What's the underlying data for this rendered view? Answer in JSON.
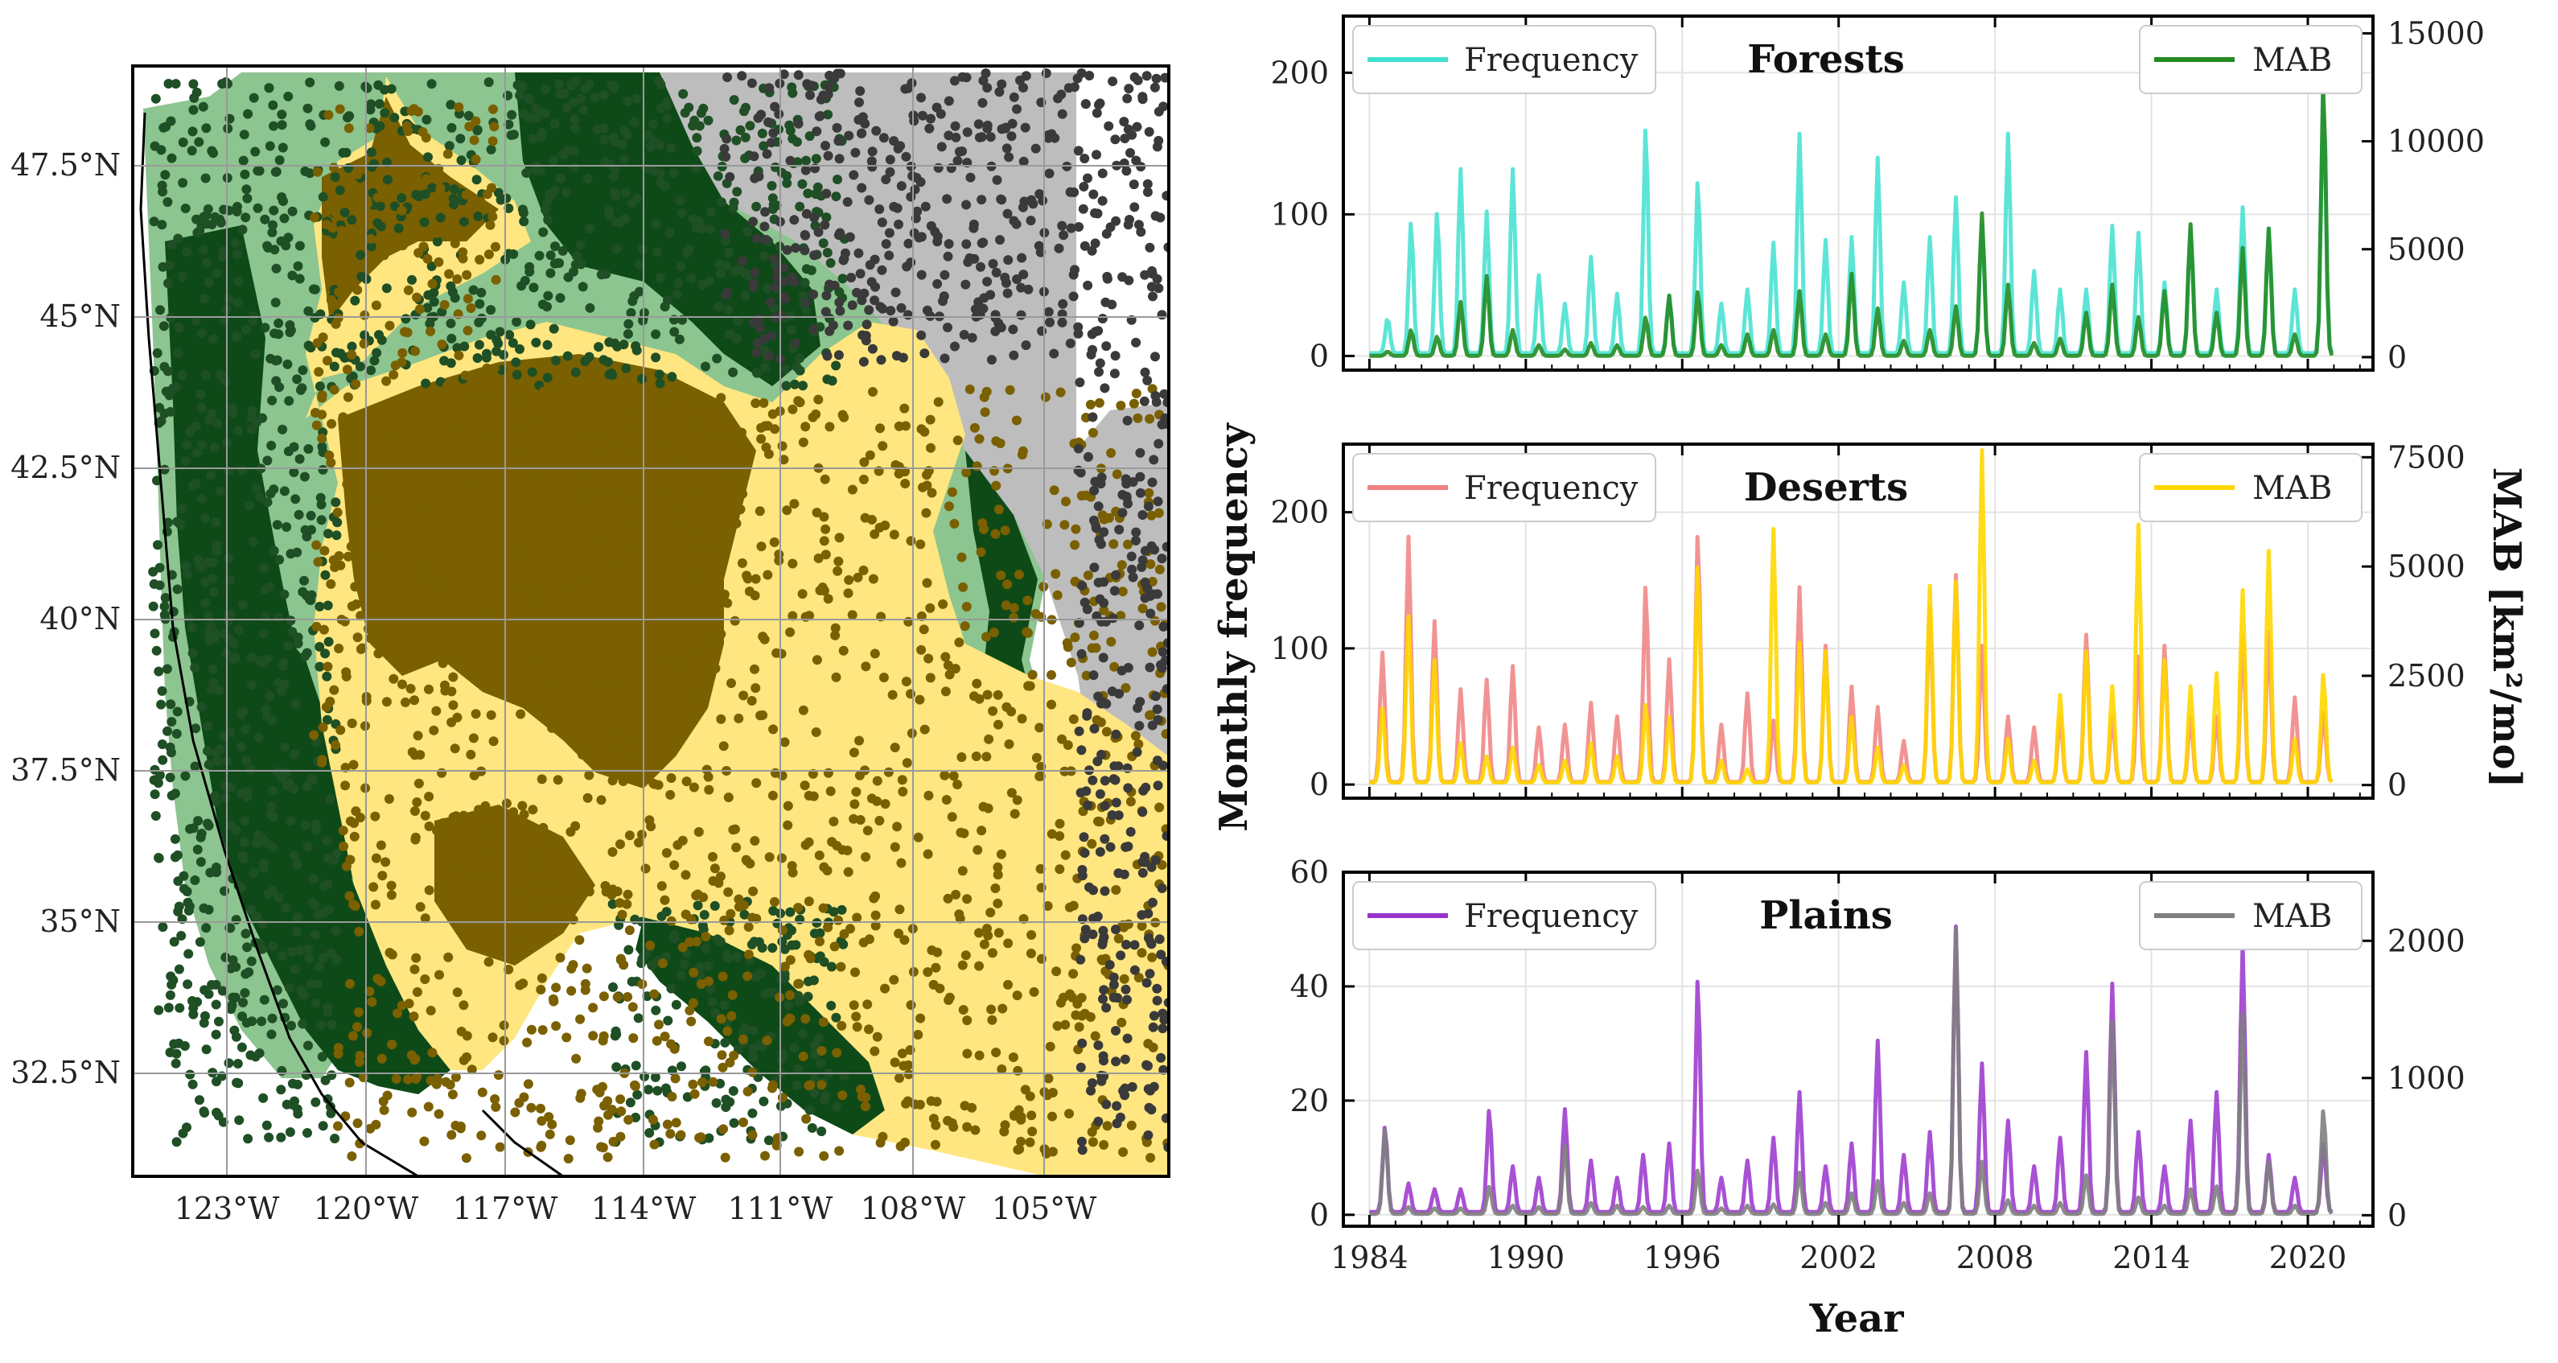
{
  "colors": {
    "forest_fill": "#8cc58f",
    "forest_dark": "#0e4a18",
    "forest_point": "#1f4f25",
    "desert_fill": "#ffe680",
    "desert_point": "#7a6000",
    "plains_fill": "#bdbdbd",
    "plains_point": "#3a3a3a",
    "forest_freq": "#40e0d0",
    "forest_mab": "#228b22",
    "desert_freq": "#f08080",
    "desert_mab": "#ffd700",
    "plains_freq": "#9932cc",
    "plains_mab": "#808080"
  },
  "map": {
    "lon_labels": [
      "123°W",
      "120°W",
      "117°W",
      "114°W",
      "111°W",
      "108°W",
      "105°W"
    ],
    "lat_labels": [
      "47.5°N",
      "45°N",
      "42.5°N",
      "40°N",
      "37.5°N",
      "35°N",
      "32.5°N"
    ]
  },
  "labels": {
    "xlabel": "Year",
    "ylabel_left": "Monthly frequency",
    "ylabel_right": "MAB [km²/mo]",
    "legend_freq": "Frequency",
    "legend_mab": "MAB"
  },
  "chart_data": [
    {
      "type": "line",
      "title": "Forests",
      "x_ticks": [
        1984,
        1990,
        1996,
        2002,
        2008,
        2014,
        2020
      ],
      "xlim": [
        1983,
        2022.5
      ],
      "ylim_left": [
        -10,
        240
      ],
      "yticks_left": [
        0,
        100,
        200
      ],
      "ylim_right": [
        -600,
        15800
      ],
      "yticks_right": [
        0,
        5000,
        10000,
        15000
      ],
      "grid": true,
      "legend": [
        "top-left",
        "top-right"
      ],
      "series": [
        {
          "name": "Frequency",
          "axis": "left",
          "peaks": [
            [
              1984.7,
              25
            ],
            [
              1985.6,
              93
            ],
            [
              1986.6,
              100
            ],
            [
              1987.5,
              130
            ],
            [
              1988.5,
              100
            ],
            [
              1989.5,
              130
            ],
            [
              1990.5,
              55
            ],
            [
              1991.5,
              35
            ],
            [
              1992.5,
              68
            ],
            [
              1993.5,
              42
            ],
            [
              1994.6,
              160
            ],
            [
              1995.5,
              40
            ],
            [
              1996.6,
              122
            ],
            [
              1997.5,
              35
            ],
            [
              1998.5,
              45
            ],
            [
              1999.5,
              78
            ],
            [
              2000.5,
              155
            ],
            [
              2001.5,
              80
            ],
            [
              2002.5,
              82
            ],
            [
              2003.5,
              138
            ],
            [
              2004.5,
              50
            ],
            [
              2005.5,
              82
            ],
            [
              2006.5,
              110
            ],
            [
              2007.5,
              90
            ],
            [
              2008.5,
              155
            ],
            [
              2009.5,
              58
            ],
            [
              2010.5,
              45
            ],
            [
              2011.5,
              45
            ],
            [
              2012.5,
              90
            ],
            [
              2013.5,
              85
            ],
            [
              2014.5,
              50
            ],
            [
              2015.5,
              88
            ],
            [
              2016.5,
              45
            ],
            [
              2017.5,
              103
            ],
            [
              2018.5,
              88
            ],
            [
              2019.5,
              45
            ],
            [
              2020.6,
              185
            ]
          ]
        },
        {
          "name": "MAB",
          "axis": "right",
          "peaks": [
            [
              1984.7,
              200
            ],
            [
              1985.6,
              1200
            ],
            [
              1986.6,
              900
            ],
            [
              1987.5,
              2500
            ],
            [
              1988.5,
              3700
            ],
            [
              1989.5,
              1200
            ],
            [
              1990.5,
              500
            ],
            [
              1991.5,
              300
            ],
            [
              1992.5,
              600
            ],
            [
              1993.5,
              500
            ],
            [
              1994.6,
              1800
            ],
            [
              1995.5,
              2800
            ],
            [
              1996.6,
              3000
            ],
            [
              1997.5,
              500
            ],
            [
              1998.5,
              1000
            ],
            [
              1999.5,
              1200
            ],
            [
              2000.5,
              3000
            ],
            [
              2001.5,
              1000
            ],
            [
              2002.5,
              3800
            ],
            [
              2003.5,
              2200
            ],
            [
              2004.5,
              700
            ],
            [
              2005.5,
              1200
            ],
            [
              2006.5,
              2300
            ],
            [
              2007.5,
              6600
            ],
            [
              2008.5,
              3300
            ],
            [
              2009.5,
              600
            ],
            [
              2010.5,
              800
            ],
            [
              2011.5,
              2000
            ],
            [
              2012.5,
              3300
            ],
            [
              2013.5,
              1800
            ],
            [
              2014.5,
              3000
            ],
            [
              2015.5,
              6100
            ],
            [
              2016.5,
              2000
            ],
            [
              2017.5,
              5000
            ],
            [
              2018.5,
              5900
            ],
            [
              2019.5,
              1000
            ],
            [
              2020.6,
              12700
            ]
          ]
        }
      ]
    },
    {
      "type": "line",
      "title": "Deserts",
      "x_ticks": [
        1984,
        1990,
        1996,
        2002,
        2008,
        2014,
        2020
      ],
      "xlim": [
        1983,
        2022.5
      ],
      "ylim_left": [
        -10,
        250
      ],
      "yticks_left": [
        0,
        100,
        200
      ],
      "ylim_right": [
        -300,
        7800
      ],
      "yticks_right": [
        0,
        2500,
        5000,
        7500
      ],
      "grid": true,
      "legend": [
        "top-left",
        "top-right"
      ],
      "series": [
        {
          "name": "Frequency",
          "axis": "left",
          "peaks": [
            [
              1984.5,
              95
            ],
            [
              1985.5,
              180
            ],
            [
              1986.5,
              118
            ],
            [
              1987.5,
              68
            ],
            [
              1988.5,
              75
            ],
            [
              1989.5,
              85
            ],
            [
              1990.5,
              40
            ],
            [
              1991.5,
              42
            ],
            [
              1992.5,
              58
            ],
            [
              1993.5,
              48
            ],
            [
              1994.6,
              145
            ],
            [
              1995.5,
              90
            ],
            [
              1996.6,
              183
            ],
            [
              1997.5,
              42
            ],
            [
              1998.5,
              65
            ],
            [
              1999.5,
              45
            ],
            [
              2000.5,
              143
            ],
            [
              2001.5,
              100
            ],
            [
              2002.5,
              70
            ],
            [
              2003.5,
              55
            ],
            [
              2004.5,
              30
            ],
            [
              2005.5,
              128
            ],
            [
              2006.5,
              152
            ],
            [
              2007.5,
              100
            ],
            [
              2008.5,
              48
            ],
            [
              2009.5,
              40
            ],
            [
              2010.5,
              48
            ],
            [
              2011.5,
              108
            ],
            [
              2012.5,
              48
            ],
            [
              2013.5,
              92
            ],
            [
              2014.5,
              100
            ],
            [
              2015.5,
              48
            ],
            [
              2016.5,
              48
            ],
            [
              2017.5,
              107
            ],
            [
              2018.5,
              110
            ],
            [
              2019.5,
              62
            ],
            [
              2020.6,
              52
            ]
          ]
        },
        {
          "name": "MAB",
          "axis": "right",
          "peaks": [
            [
              1984.5,
              1700
            ],
            [
              1985.5,
              3800
            ],
            [
              1986.5,
              2800
            ],
            [
              1987.5,
              900
            ],
            [
              1988.5,
              600
            ],
            [
              1989.5,
              800
            ],
            [
              1990.5,
              400
            ],
            [
              1991.5,
              500
            ],
            [
              1992.5,
              900
            ],
            [
              1993.5,
              600
            ],
            [
              1994.6,
              1800
            ],
            [
              1995.5,
              1500
            ],
            [
              1996.6,
              5000
            ],
            [
              1997.5,
              500
            ],
            [
              1998.5,
              300
            ],
            [
              1999.5,
              5800
            ],
            [
              2000.5,
              3200
            ],
            [
              2001.5,
              3000
            ],
            [
              2002.5,
              1500
            ],
            [
              2003.5,
              800
            ],
            [
              2004.5,
              400
            ],
            [
              2005.5,
              4500
            ],
            [
              2006.5,
              4600
            ],
            [
              2007.5,
              7600
            ],
            [
              2008.5,
              1000
            ],
            [
              2009.5,
              500
            ],
            [
              2010.5,
              2000
            ],
            [
              2011.5,
              3000
            ],
            [
              2012.5,
              2200
            ],
            [
              2013.5,
              5900
            ],
            [
              2014.5,
              2800
            ],
            [
              2015.5,
              2200
            ],
            [
              2016.5,
              2500
            ],
            [
              2017.5,
              4400
            ],
            [
              2018.5,
              5300
            ],
            [
              2019.5,
              1000
            ],
            [
              2020.6,
              2500
            ]
          ]
        }
      ]
    },
    {
      "type": "line",
      "title": "Plains",
      "x_ticks": [
        1984,
        1990,
        1996,
        2002,
        2008,
        2014,
        2020
      ],
      "xlim": [
        1983,
        2022.5
      ],
      "ylim_left": [
        -2,
        60
      ],
      "yticks_left": [
        0,
        20,
        40,
        60
      ],
      "ylim_right": [
        -80,
        2500
      ],
      "yticks_right": [
        0,
        1000,
        2000
      ],
      "grid": true,
      "legend": [
        "top-left",
        "top-right"
      ],
      "series": [
        {
          "name": "Frequency",
          "axis": "left",
          "peaks": [
            [
              1984.6,
              15
            ],
            [
              1985.5,
              5
            ],
            [
              1986.5,
              4
            ],
            [
              1987.5,
              4
            ],
            [
              1988.6,
              18
            ],
            [
              1989.5,
              8
            ],
            [
              1990.5,
              6
            ],
            [
              1991.5,
              18
            ],
            [
              1992.5,
              9
            ],
            [
              1993.5,
              6
            ],
            [
              1994.5,
              10
            ],
            [
              1995.5,
              12
            ],
            [
              1996.6,
              41
            ],
            [
              1997.5,
              6
            ],
            [
              1998.5,
              9
            ],
            [
              1999.5,
              13
            ],
            [
              2000.5,
              21
            ],
            [
              2001.5,
              8
            ],
            [
              2002.5,
              12
            ],
            [
              2003.5,
              30
            ],
            [
              2004.5,
              10
            ],
            [
              2005.5,
              14
            ],
            [
              2006.5,
              50
            ],
            [
              2007.5,
              26
            ],
            [
              2008.5,
              16
            ],
            [
              2009.5,
              8
            ],
            [
              2010.5,
              13
            ],
            [
              2011.5,
              28
            ],
            [
              2012.5,
              40
            ],
            [
              2013.5,
              14
            ],
            [
              2014.5,
              8
            ],
            [
              2015.5,
              16
            ],
            [
              2016.5,
              21
            ],
            [
              2017.5,
              47
            ],
            [
              2018.5,
              10
            ],
            [
              2019.5,
              6
            ],
            [
              2020.6,
              12
            ]
          ]
        },
        {
          "name": "MAB",
          "axis": "right",
          "peaks": [
            [
              1984.6,
              620
            ],
            [
              1985.5,
              50
            ],
            [
              1986.5,
              40
            ],
            [
              1987.5,
              40
            ],
            [
              1988.6,
              200
            ],
            [
              1989.5,
              60
            ],
            [
              1990.5,
              50
            ],
            [
              1991.5,
              500
            ],
            [
              1992.5,
              80
            ],
            [
              1993.5,
              60
            ],
            [
              1994.5,
              50
            ],
            [
              1995.5,
              60
            ],
            [
              1996.6,
              320
            ],
            [
              1997.5,
              40
            ],
            [
              1998.5,
              60
            ],
            [
              1999.5,
              70
            ],
            [
              2000.5,
              300
            ],
            [
              2001.5,
              80
            ],
            [
              2002.5,
              150
            ],
            [
              2003.5,
              240
            ],
            [
              2004.5,
              80
            ],
            [
              2005.5,
              150
            ],
            [
              2006.5,
              2080
            ],
            [
              2007.5,
              380
            ],
            [
              2008.5,
              100
            ],
            [
              2009.5,
              60
            ],
            [
              2010.5,
              80
            ],
            [
              2011.5,
              280
            ],
            [
              2012.5,
              1400
            ],
            [
              2013.5,
              120
            ],
            [
              2014.5,
              60
            ],
            [
              2015.5,
              180
            ],
            [
              2016.5,
              200
            ],
            [
              2017.5,
              1460
            ],
            [
              2018.5,
              380
            ],
            [
              2019.5,
              60
            ],
            [
              2020.6,
              760
            ]
          ]
        }
      ]
    }
  ]
}
